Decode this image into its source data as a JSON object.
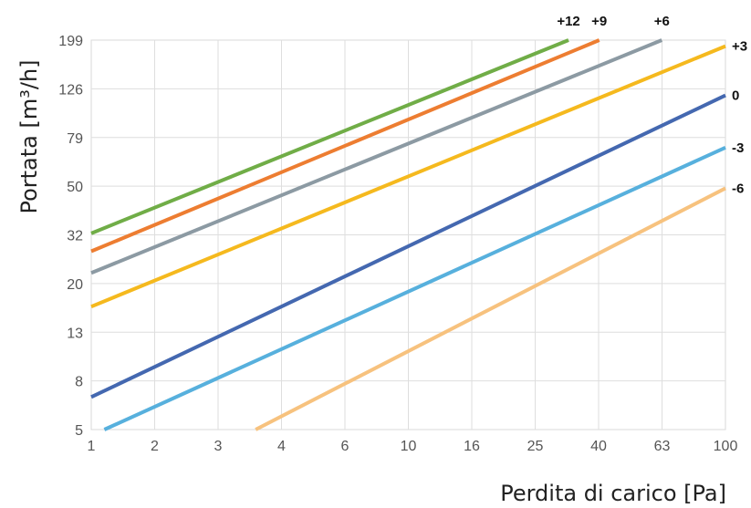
{
  "chart_data": {
    "type": "line",
    "xlabel": "Perdita di carico [Pa]",
    "ylabel": "Portata [m³/h]",
    "x_ticks": [
      "1",
      "2",
      "3",
      "4",
      "6",
      "10",
      "16",
      "25",
      "40",
      "63",
      "100"
    ],
    "y_ticks": [
      "5",
      "8",
      "13",
      "20",
      "32",
      "50",
      "79",
      "126",
      "199"
    ],
    "grid": true,
    "series": [
      {
        "name": "+12",
        "color": "#70ad47",
        "start": [
          1,
          32
        ],
        "end": [
          32,
          199
        ]
      },
      {
        "name": "+9",
        "color": "#ed7d31",
        "start": [
          1,
          27
        ],
        "end": [
          40,
          199
        ]
      },
      {
        "name": "+6",
        "color": "#8c9aa3",
        "start": [
          1,
          22
        ],
        "end": [
          63,
          199
        ]
      },
      {
        "name": "+3",
        "color": "#f5b91e",
        "start": [
          1,
          16
        ],
        "end": [
          100,
          188
        ]
      },
      {
        "name": "0",
        "color": "#4468b0",
        "start": [
          1,
          6.8
        ],
        "end": [
          100,
          118
        ]
      },
      {
        "name": "-3",
        "color": "#57b0dd",
        "start": [
          1.1,
          5
        ],
        "end": [
          100,
          72
        ]
      },
      {
        "name": "-6",
        "color": "#f7c27e",
        "start": [
          3.3,
          5
        ],
        "end": [
          100,
          49
        ]
      }
    ]
  }
}
